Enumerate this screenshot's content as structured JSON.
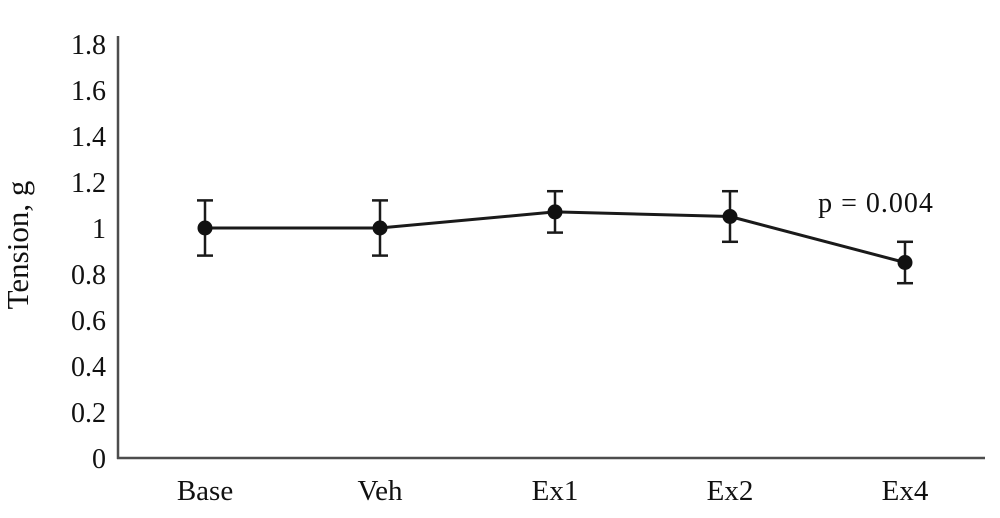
{
  "chart_data": {
    "type": "line",
    "title": "",
    "xlabel": "",
    "ylabel": "Tension, g",
    "categories": [
      "Base",
      "Veh",
      "Ex1",
      "Ex2",
      "Ex4"
    ],
    "series": [
      {
        "name": "Tension",
        "values": [
          1.0,
          1.0,
          1.07,
          1.05,
          0.85
        ],
        "errors": [
          0.12,
          0.12,
          0.09,
          0.11,
          0.09
        ]
      }
    ],
    "ylim": [
      0,
      1.8
    ],
    "ytick_step": 0.2,
    "grid": false,
    "legend": "none",
    "annotation": {
      "text": "p = 0.004"
    },
    "colors": {
      "line": "#1a1a1a",
      "marker": "#111111",
      "error_bar": "#1a1a1a",
      "axis": "#4d4d4d",
      "text": "#111111"
    }
  }
}
